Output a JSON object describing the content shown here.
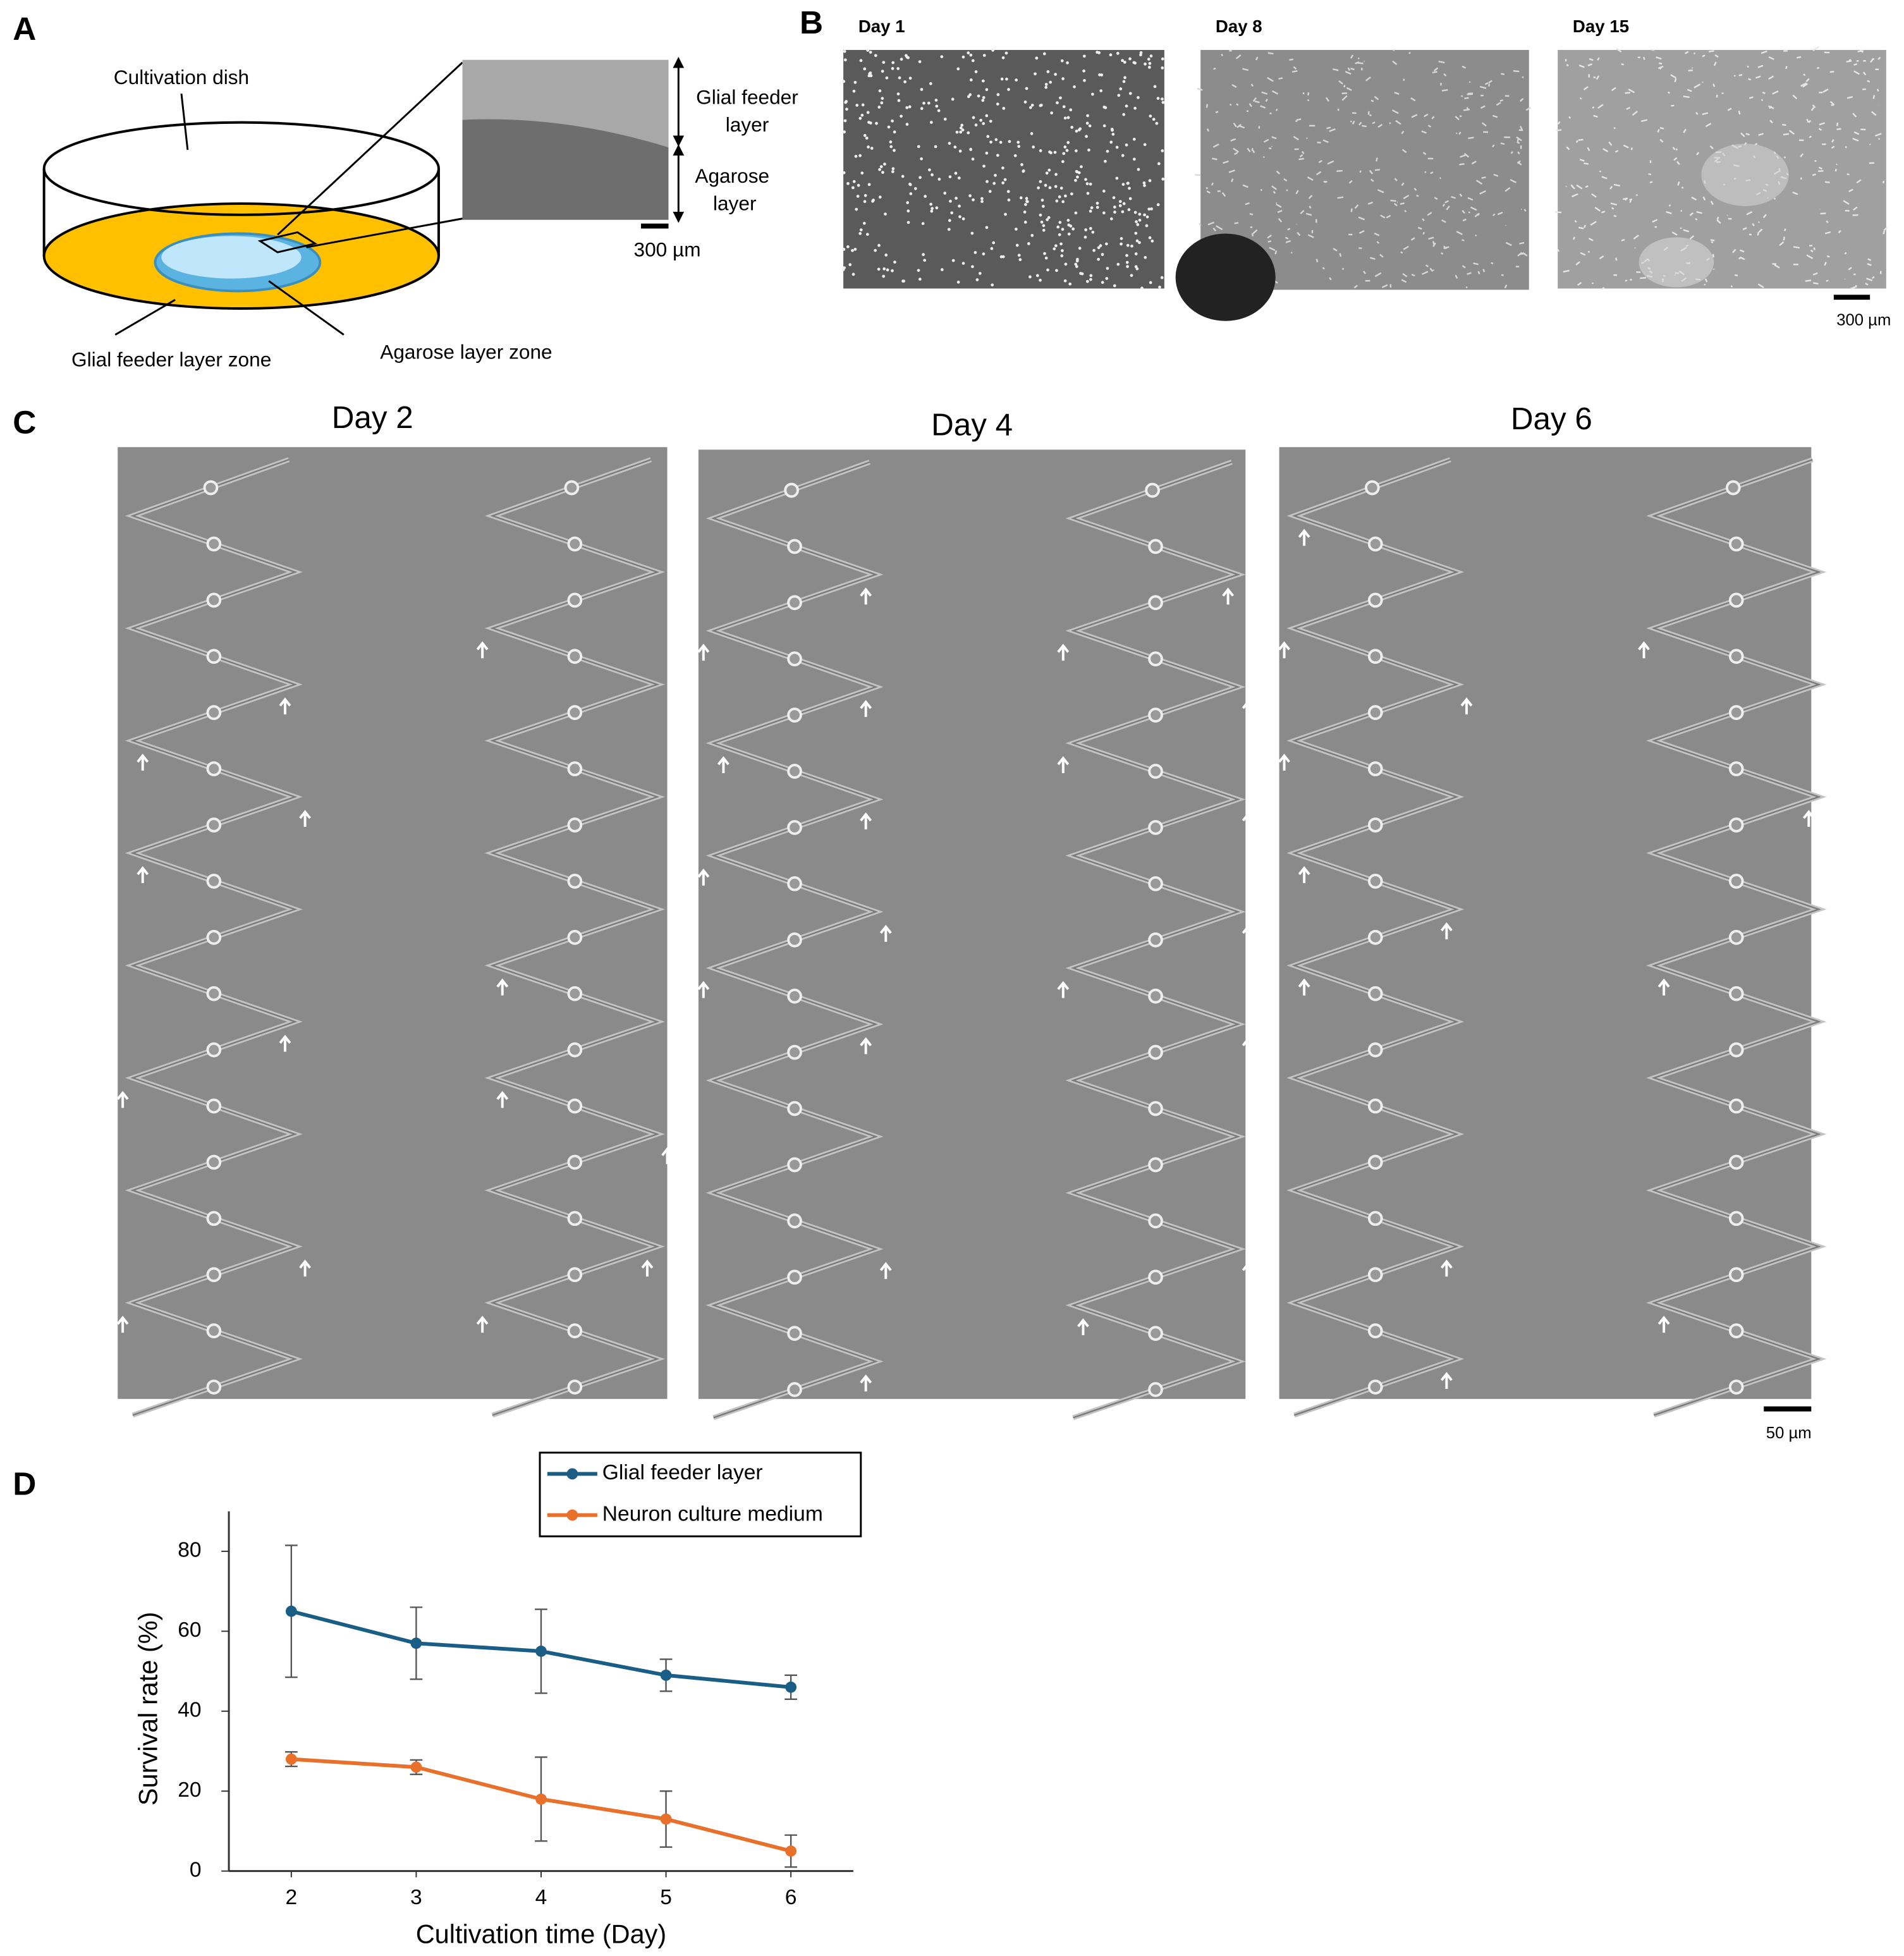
{
  "panel_labels": [
    "A",
    "B",
    "C",
    "D"
  ],
  "panel_a": {
    "dish_label": "Cultivation dish",
    "inset_top_label": [
      "Glial feeder",
      "layer"
    ],
    "inset_bottom_label": [
      "Agarose",
      "layer"
    ],
    "scale_label": "300 µm",
    "feeder_zone_label": "Glial feeder layer zone",
    "agarose_zone_label": "Agarose layer zone"
  },
  "panel_b": {
    "days": [
      "Day 1",
      "Day 8",
      "Day 15"
    ],
    "scale_label": "300 µm"
  },
  "panel_c": {
    "days": [
      "Day 2",
      "Day 4",
      "Day 6"
    ],
    "scale_label": "50 µm"
  },
  "chart_data": {
    "type": "line",
    "xlabel": "Cultivation time (Day)",
    "ylabel": "Survival rate (%)",
    "x": [
      2,
      3,
      4,
      5,
      6
    ],
    "xlim": [
      1.5,
      6.5
    ],
    "xticks": [
      2,
      3,
      4,
      5,
      6
    ],
    "ylim": [
      0,
      90
    ],
    "yticks": [
      0,
      20,
      40,
      60,
      80
    ],
    "grid": false,
    "series": [
      {
        "name": "Glial feeder layer",
        "color": "#1b5e85",
        "values": [
          65,
          57,
          55,
          49,
          46
        ],
        "errors": [
          16.5,
          9,
          10.5,
          4,
          3
        ]
      },
      {
        "name": "Neuron culture medium",
        "color": "#e8702a",
        "values": [
          28,
          26,
          18,
          13,
          5
        ],
        "errors": [
          1.8,
          1.8,
          10.5,
          7,
          4
        ]
      }
    ]
  }
}
